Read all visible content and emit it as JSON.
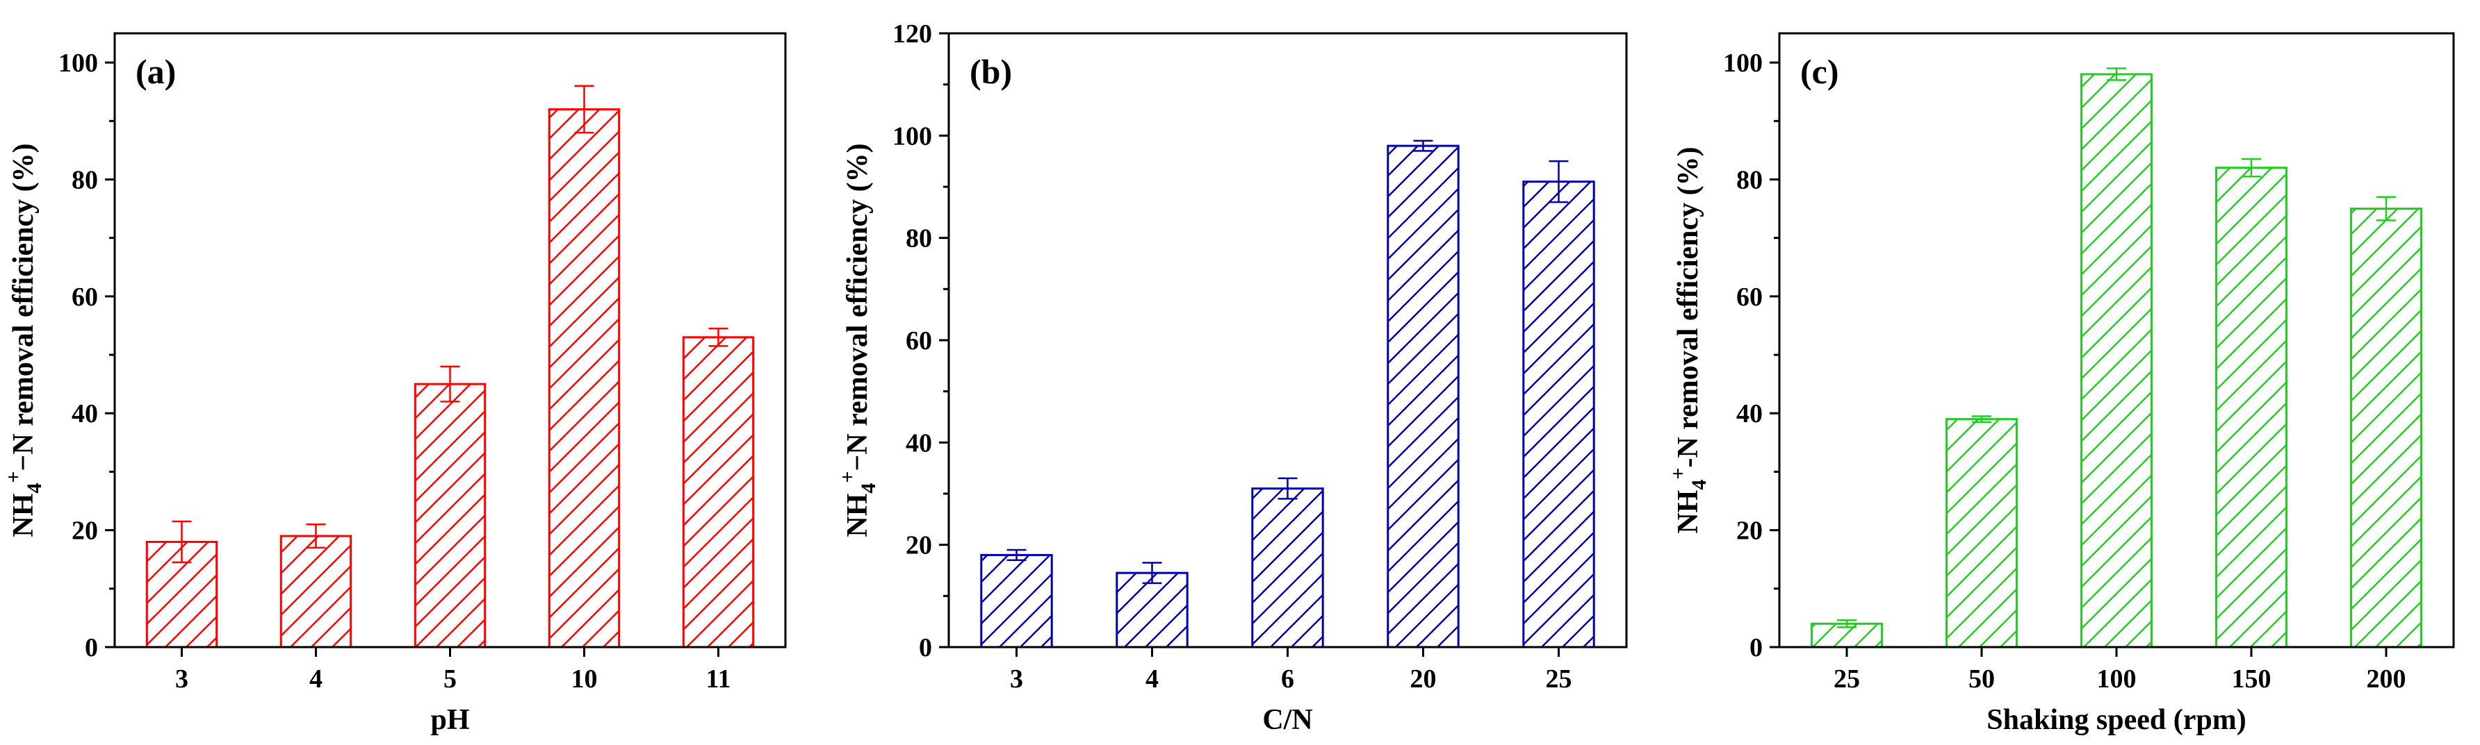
{
  "chart_data": [
    {
      "type": "bar",
      "panel_label": "(a)",
      "categories": [
        "3",
        "4",
        "5",
        "10",
        "11"
      ],
      "values": [
        18,
        19,
        45,
        92,
        53
      ],
      "errors": [
        3.5,
        2,
        3,
        4,
        1.5
      ],
      "xlabel": "pH",
      "ylabel_parts": [
        "NH",
        "4",
        "+",
        "−N removal efficiency (%)"
      ],
      "ylim": [
        0,
        105
      ],
      "yticks": [
        0,
        20,
        40,
        60,
        80,
        100
      ],
      "color": "#ff0000",
      "hatch": "diagonal"
    },
    {
      "type": "bar",
      "panel_label": "(b)",
      "categories": [
        "3",
        "4",
        "6",
        "20",
        "25"
      ],
      "values": [
        18,
        14.5,
        31,
        98,
        91
      ],
      "errors": [
        1,
        2,
        2,
        1,
        4
      ],
      "xlabel": "C/N",
      "ylabel_parts": [
        "NH",
        "4",
        "+",
        "−N removal efficiency (%)"
      ],
      "ylim": [
        0,
        120
      ],
      "yticks": [
        0,
        20,
        40,
        60,
        80,
        100,
        120
      ],
      "color": "#0000aa",
      "hatch": "diagonal"
    },
    {
      "type": "bar",
      "panel_label": "(c)",
      "categories": [
        "25",
        "50",
        "100",
        "150",
        "200"
      ],
      "values": [
        4,
        39,
        98,
        82,
        75
      ],
      "errors": [
        0.6,
        0.5,
        1,
        1.5,
        2
      ],
      "xlabel": "Shaking speed (rpm)",
      "ylabel_parts": [
        "NH",
        "4",
        "+",
        "-N removal efficiency (%)"
      ],
      "ylim": [
        0,
        105
      ],
      "yticks": [
        0,
        20,
        40,
        60,
        80,
        100
      ],
      "color": "#22cc22",
      "hatch": "diagonal"
    }
  ]
}
